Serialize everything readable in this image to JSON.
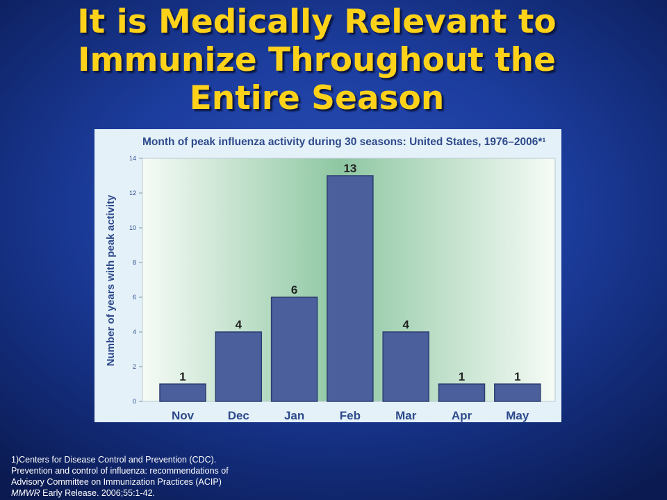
{
  "slide": {
    "title_lines": [
      "It is Medically Relevant to",
      "Immunize Throughout the",
      "Entire Season"
    ],
    "footnote": {
      "line1": "1)Centers  for Disease Control and Prevention (CDC).",
      "line2": "Prevention and control of influenza: recommendations of",
      "line3": "Advisory Committee on Immunization  Practices (ACIP)",
      "journal": "MMWR",
      "line4_rest": " Early Release.  2006;55:1-42."
    }
  },
  "colors": {
    "title": "#ffd21a",
    "bar_fill": "#4a5f9c",
    "bar_stroke": "#2c3c70",
    "axis_text": "#2e4a8c",
    "plot_edge": "#f6fbf6",
    "plot_center": "#8ec7a2"
  },
  "chart_data": {
    "type": "bar",
    "title": "Month of peak influenza activity during 30 seasons: United States, 1976–2006*¹",
    "xlabel": "",
    "ylabel": "Number of years with peak activity",
    "categories": [
      "Nov",
      "Dec",
      "Jan",
      "Feb",
      "Mar",
      "Apr",
      "May"
    ],
    "values": [
      1,
      4,
      6,
      13,
      4,
      1,
      1
    ],
    "ylim": [
      0,
      14
    ],
    "yticks": [
      0,
      2,
      4,
      6,
      8,
      10,
      12,
      14
    ],
    "data_labels": true,
    "grid": false,
    "legend": "none"
  }
}
